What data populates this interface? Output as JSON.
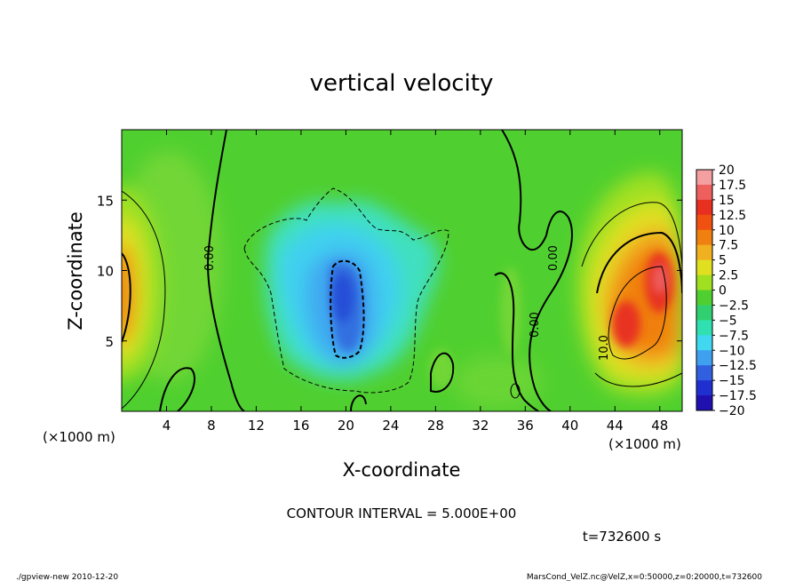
{
  "chart_data": {
    "type": "heatmap",
    "title": "vertical velocity",
    "xlabel": "X-coordinate",
    "ylabel": "Z-coordinate",
    "x_unit": "(×1000 m)",
    "y_unit": "(×1000 m)",
    "xlim": [
      0,
      50
    ],
    "ylim": [
      0,
      20
    ],
    "x_ticks": [
      4,
      8,
      12,
      16,
      20,
      24,
      28,
      32,
      36,
      40,
      44,
      48
    ],
    "y_ticks": [
      5,
      10,
      15
    ],
    "colorbar": {
      "levels": [
        20,
        17.5,
        15,
        12.5,
        10,
        7.5,
        5,
        2.5,
        0,
        -2.5,
        -5,
        -7.5,
        -10,
        -12.5,
        -15,
        -17.5,
        -20
      ],
      "colors": [
        "#f4a0a0",
        "#ee6060",
        "#e83020",
        "#f05010",
        "#f08010",
        "#f0b020",
        "#e0e020",
        "#a0e020",
        "#50d030",
        "#30d070",
        "#30e0b0",
        "#40d8f0",
        "#40a0f0",
        "#3060e0",
        "#2030d0",
        "#2010b0",
        "#6010a0"
      ]
    },
    "contour_interval": "CONTOUR INTERVAL = 5.000E+00",
    "contour_labels": [
      "0.00",
      "0.00",
      "0.00",
      "10.0"
    ],
    "features": [
      {
        "kind": "updraft",
        "x": 48,
        "z": 9.5,
        "value": 20
      },
      {
        "kind": "updraft",
        "x": 44.5,
        "z": 6.5,
        "value": 15
      },
      {
        "kind": "updraft",
        "x": 0.5,
        "z": 9,
        "value": 10
      },
      {
        "kind": "downdraft",
        "x": 20,
        "z": 7.5,
        "value": -12.5
      },
      {
        "kind": "downdraft",
        "x": 21,
        "z": 5,
        "value": -10
      }
    ]
  },
  "annotations": {
    "time": "t=732600 s",
    "footer_left": "./gpview-new   2010-12-20",
    "footer_right": "MarsCond_VelZ.nc@VelZ,x=0:50000,z=0:20000,t=732600"
  }
}
